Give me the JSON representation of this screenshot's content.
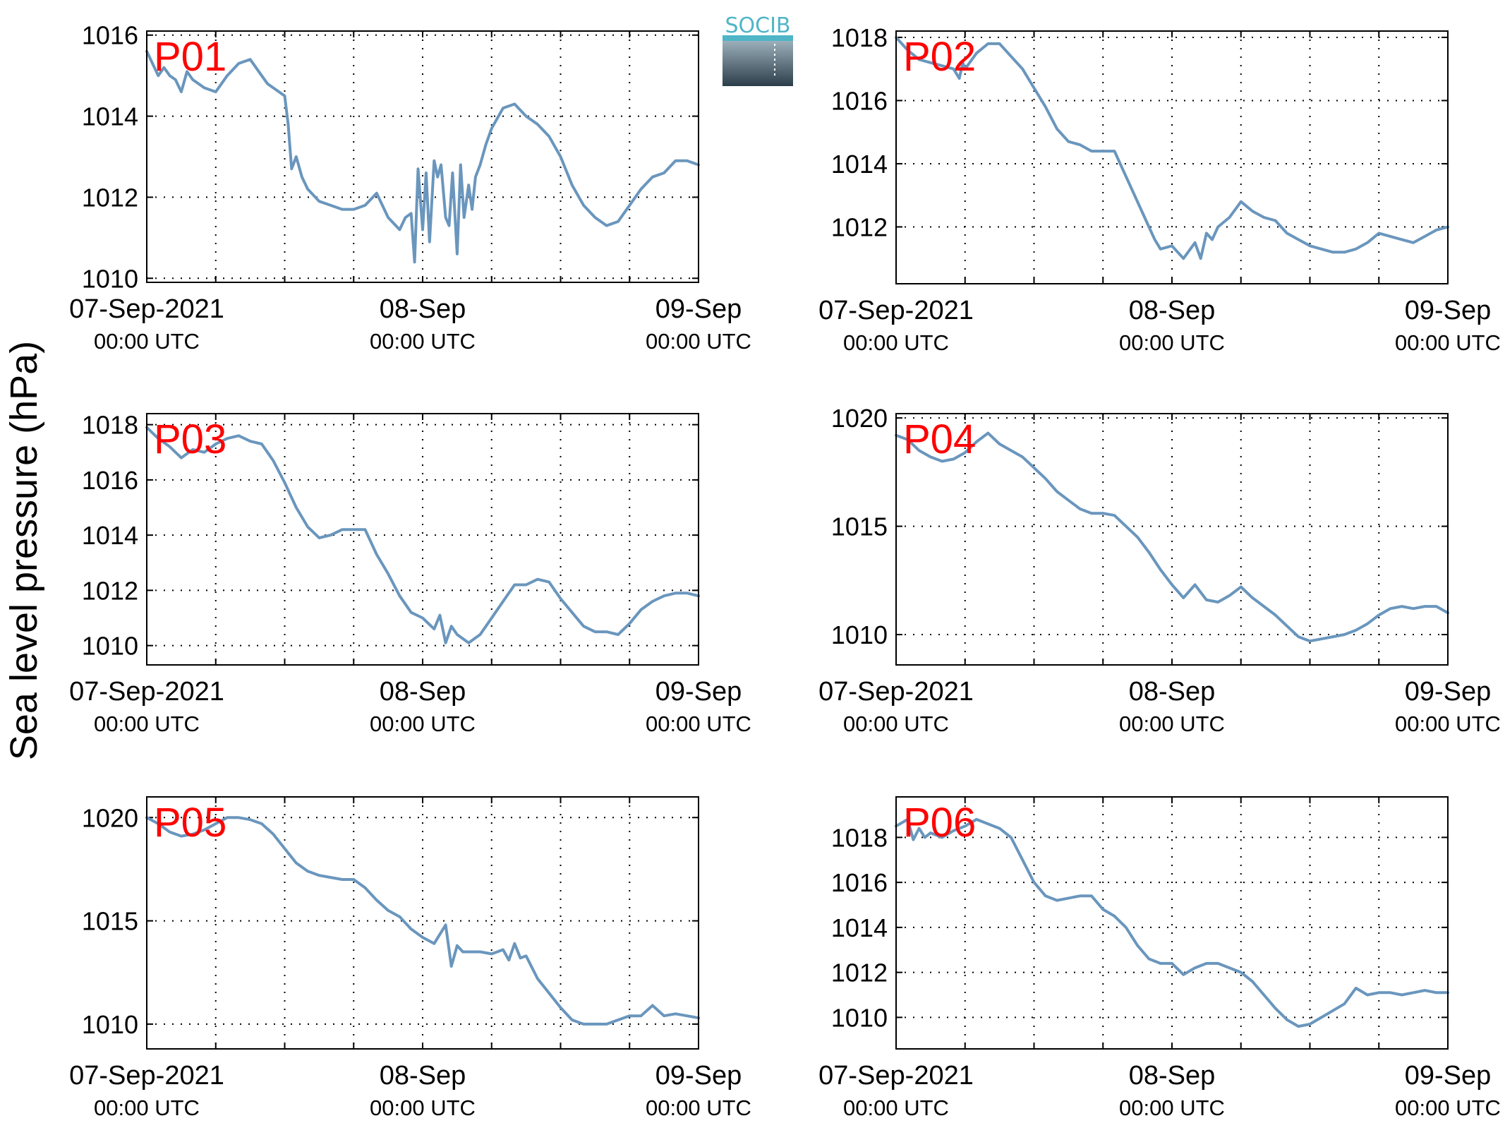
{
  "figure": {
    "ylabel": "Sea level pressure (hPa)",
    "logo_text": "SOCIB",
    "line_color": "#6a96bd",
    "panel_label_color": "#ff0000"
  },
  "chart_data": [
    {
      "type": "line",
      "title": "P01",
      "grid": true,
      "x_ticks": [
        {
          "label": "07-Sep-2021",
          "sub": "00:00 UTC",
          "t": 0
        },
        {
          "label": "08-Sep",
          "sub": "00:00 UTC",
          "t": 24
        },
        {
          "label": "09-Sep",
          "sub": "00:00 UTC",
          "t": 48
        }
      ],
      "x_grid_hours": [
        6,
        12,
        18,
        24,
        30,
        36,
        42
      ],
      "xlim_hours": [
        0,
        48
      ],
      "ylim": [
        1009.9,
        1016.1
      ],
      "yticks": [
        1010,
        1012,
        1014,
        1016
      ],
      "series": [
        {
          "x_hours": [
            0,
            0.5,
            1,
            1.5,
            2,
            2.5,
            3,
            3.5,
            4,
            5,
            6,
            7,
            8,
            9,
            10,
            10.5,
            11,
            11.5,
            12,
            12.3,
            12.6,
            13,
            13.5,
            14,
            15,
            16,
            17,
            18,
            19,
            20,
            21,
            22,
            22.5,
            23,
            23.3,
            23.6,
            24,
            24.3,
            24.6,
            25,
            25.3,
            25.6,
            26,
            26.3,
            26.6,
            27,
            27.3,
            27.6,
            28,
            28.3,
            28.6,
            29,
            29.5,
            30,
            31,
            32,
            33,
            34,
            35,
            36,
            37,
            38,
            39,
            40,
            41,
            42,
            43,
            44,
            45,
            46,
            47,
            48
          ],
          "y": [
            1015.6,
            1015.3,
            1015.0,
            1015.2,
            1015.0,
            1014.9,
            1014.6,
            1015.1,
            1014.9,
            1014.7,
            1014.6,
            1015.0,
            1015.3,
            1015.4,
            1015.0,
            1014.8,
            1014.7,
            1014.6,
            1014.5,
            1013.8,
            1012.7,
            1013.0,
            1012.5,
            1012.2,
            1011.9,
            1011.8,
            1011.7,
            1011.7,
            1011.8,
            1012.1,
            1011.5,
            1011.2,
            1011.5,
            1011.6,
            1010.4,
            1012.7,
            1011.2,
            1012.6,
            1010.9,
            1012.9,
            1012.5,
            1012.8,
            1011.5,
            1011.3,
            1012.6,
            1010.6,
            1012.8,
            1011.5,
            1012.3,
            1011.7,
            1012.5,
            1012.8,
            1013.3,
            1013.7,
            1014.2,
            1014.3,
            1014.0,
            1013.8,
            1013.5,
            1013.0,
            1012.3,
            1011.8,
            1011.5,
            1011.3,
            1011.4,
            1011.8,
            1012.2,
            1012.5,
            1012.6,
            1012.9,
            1012.9,
            1012.8
          ]
        }
      ]
    },
    {
      "type": "line",
      "title": "P02",
      "grid": true,
      "x_ticks": [
        {
          "label": "07-Sep-2021",
          "sub": "00:00 UTC",
          "t": 0
        },
        {
          "label": "08-Sep",
          "sub": "00:00 UTC",
          "t": 24
        },
        {
          "label": "09-Sep",
          "sub": "00:00 UTC",
          "t": 48
        }
      ],
      "x_grid_hours": [
        6,
        12,
        18,
        24,
        30,
        36,
        42
      ],
      "xlim_hours": [
        0,
        48
      ],
      "ylim": [
        1010.2,
        1018.2
      ],
      "yticks": [
        1012,
        1014,
        1016,
        1018
      ],
      "series": [
        {
          "x_hours": [
            0,
            1,
            2,
            3,
            4,
            5,
            5.5,
            5.8,
            6,
            7,
            8,
            9,
            10,
            11,
            12,
            13,
            14,
            15,
            16,
            17,
            18,
            19,
            20,
            21,
            22,
            22.5,
            23,
            24,
            25,
            26,
            26.5,
            27,
            27.5,
            28,
            29,
            30,
            31,
            32,
            33,
            34,
            35,
            36,
            37,
            38,
            39,
            40,
            41,
            42,
            43,
            44,
            45,
            46,
            47,
            48
          ],
          "y": [
            1018.0,
            1017.6,
            1017.3,
            1017.2,
            1017.1,
            1017.0,
            1016.7,
            1017.2,
            1017.0,
            1017.5,
            1017.8,
            1017.8,
            1017.4,
            1017.0,
            1016.4,
            1015.8,
            1015.1,
            1014.7,
            1014.6,
            1014.4,
            1014.4,
            1014.4,
            1013.6,
            1012.8,
            1012.0,
            1011.6,
            1011.3,
            1011.4,
            1011.0,
            1011.5,
            1011.0,
            1011.8,
            1011.6,
            1012.0,
            1012.3,
            1012.8,
            1012.5,
            1012.3,
            1012.2,
            1011.8,
            1011.6,
            1011.4,
            1011.3,
            1011.2,
            1011.2,
            1011.3,
            1011.5,
            1011.8,
            1011.7,
            1011.6,
            1011.5,
            1011.7,
            1011.9,
            1012.0
          ]
        }
      ]
    },
    {
      "type": "line",
      "title": "P03",
      "grid": true,
      "x_ticks": [
        {
          "label": "07-Sep-2021",
          "sub": "00:00 UTC",
          "t": 0
        },
        {
          "label": "08-Sep",
          "sub": "00:00 UTC",
          "t": 24
        },
        {
          "label": "09-Sep",
          "sub": "00:00 UTC",
          "t": 48
        }
      ],
      "x_grid_hours": [
        6,
        12,
        18,
        24,
        30,
        36,
        42
      ],
      "xlim_hours": [
        0,
        48
      ],
      "ylim": [
        1009.3,
        1018.4
      ],
      "yticks": [
        1010,
        1012,
        1014,
        1016,
        1018
      ],
      "series": [
        {
          "x_hours": [
            0,
            1,
            2,
            3,
            4,
            5,
            6,
            7,
            8,
            9,
            10,
            11,
            12,
            13,
            14,
            15,
            16,
            17,
            18,
            19,
            20,
            21,
            22,
            23,
            24,
            25,
            25.5,
            26,
            26.5,
            27,
            28,
            29,
            30,
            31,
            32,
            33,
            34,
            35,
            36,
            37,
            38,
            39,
            40,
            41,
            42,
            43,
            44,
            45,
            46,
            47,
            48
          ],
          "y": [
            1017.9,
            1017.5,
            1017.2,
            1016.8,
            1017.1,
            1017.0,
            1017.3,
            1017.5,
            1017.6,
            1017.4,
            1017.3,
            1016.7,
            1015.9,
            1015.0,
            1014.3,
            1013.9,
            1014.0,
            1014.2,
            1014.2,
            1014.2,
            1013.3,
            1012.6,
            1011.8,
            1011.2,
            1011.0,
            1010.6,
            1011.1,
            1010.1,
            1010.7,
            1010.4,
            1010.1,
            1010.4,
            1011.0,
            1011.6,
            1012.2,
            1012.2,
            1012.4,
            1012.3,
            1011.7,
            1011.2,
            1010.7,
            1010.5,
            1010.5,
            1010.4,
            1010.8,
            1011.3,
            1011.6,
            1011.8,
            1011.9,
            1011.9,
            1011.8
          ]
        }
      ]
    },
    {
      "type": "line",
      "title": "P04",
      "grid": true,
      "x_ticks": [
        {
          "label": "07-Sep-2021",
          "sub": "00:00 UTC",
          "t": 0
        },
        {
          "label": "08-Sep",
          "sub": "00:00 UTC",
          "t": 24
        },
        {
          "label": "09-Sep",
          "sub": "00:00 UTC",
          "t": 48
        }
      ],
      "x_grid_hours": [
        6,
        12,
        18,
        24,
        30,
        36,
        42
      ],
      "xlim_hours": [
        0,
        48
      ],
      "ylim": [
        1008.6,
        1020.2
      ],
      "yticks": [
        1010,
        1015,
        1020
      ],
      "series": [
        {
          "x_hours": [
            0,
            1,
            2,
            3,
            4,
            5,
            6,
            7,
            8,
            9,
            10,
            11,
            12,
            13,
            14,
            15,
            16,
            17,
            18,
            19,
            20,
            21,
            22,
            23,
            24,
            25,
            26,
            27,
            28,
            29,
            30,
            31,
            32,
            33,
            34,
            35,
            36,
            37,
            38,
            39,
            40,
            41,
            42,
            43,
            44,
            45,
            46,
            47,
            48
          ],
          "y": [
            1019.2,
            1019.0,
            1018.5,
            1018.2,
            1018.0,
            1018.1,
            1018.4,
            1018.9,
            1019.3,
            1018.8,
            1018.5,
            1018.2,
            1017.7,
            1017.2,
            1016.6,
            1016.2,
            1015.8,
            1015.6,
            1015.6,
            1015.5,
            1015.0,
            1014.5,
            1013.8,
            1013.0,
            1012.3,
            1011.7,
            1012.3,
            1011.6,
            1011.5,
            1011.8,
            1012.2,
            1011.7,
            1011.3,
            1010.9,
            1010.4,
            1009.9,
            1009.7,
            1009.8,
            1009.9,
            1010.0,
            1010.2,
            1010.5,
            1010.9,
            1011.2,
            1011.3,
            1011.2,
            1011.3,
            1011.3,
            1011.0
          ]
        }
      ]
    },
    {
      "type": "line",
      "title": "P05",
      "grid": true,
      "x_ticks": [
        {
          "label": "07-Sep-2021",
          "sub": "00:00 UTC",
          "t": 0
        },
        {
          "label": "08-Sep",
          "sub": "00:00 UTC",
          "t": 24
        },
        {
          "label": "09-Sep",
          "sub": "00:00 UTC",
          "t": 48
        }
      ],
      "x_grid_hours": [
        6,
        12,
        18,
        24,
        30,
        36,
        42
      ],
      "xlim_hours": [
        0,
        48
      ],
      "ylim": [
        1008.8,
        1021.0
      ],
      "yticks": [
        1010,
        1015,
        1020
      ],
      "series": [
        {
          "x_hours": [
            0,
            1,
            2,
            3,
            4,
            5,
            6,
            7,
            8,
            9,
            10,
            11,
            12,
            13,
            14,
            15,
            16,
            17,
            18,
            19,
            20,
            21,
            22,
            23,
            24,
            25,
            26,
            26.5,
            27,
            27.5,
            28,
            29,
            30,
            31,
            31.5,
            32,
            32.5,
            33,
            34,
            35,
            36,
            37,
            38,
            39,
            40,
            41,
            42,
            43,
            44,
            45,
            46,
            47,
            48
          ],
          "y": [
            1020.0,
            1019.7,
            1019.3,
            1019.1,
            1019.2,
            1019.4,
            1019.7,
            1020.0,
            1020.0,
            1019.9,
            1019.7,
            1019.2,
            1018.5,
            1017.8,
            1017.4,
            1017.2,
            1017.1,
            1017.0,
            1017.0,
            1016.6,
            1016.0,
            1015.5,
            1015.2,
            1014.6,
            1014.2,
            1013.9,
            1014.8,
            1012.8,
            1013.8,
            1013.5,
            1013.5,
            1013.5,
            1013.4,
            1013.6,
            1013.1,
            1013.9,
            1013.2,
            1013.3,
            1012.2,
            1011.5,
            1010.8,
            1010.2,
            1010.0,
            1010.0,
            1010.0,
            1010.2,
            1010.4,
            1010.4,
            1010.9,
            1010.4,
            1010.5,
            1010.4,
            1010.3
          ]
        }
      ]
    },
    {
      "type": "line",
      "title": "P06",
      "grid": true,
      "x_ticks": [
        {
          "label": "07-Sep-2021",
          "sub": "00:00 UTC",
          "t": 0
        },
        {
          "label": "08-Sep",
          "sub": "00:00 UTC",
          "t": 24
        },
        {
          "label": "09-Sep",
          "sub": "00:00 UTC",
          "t": 48
        }
      ],
      "x_grid_hours": [
        6,
        12,
        18,
        24,
        30,
        36,
        42
      ],
      "xlim_hours": [
        0,
        48
      ],
      "ylim": [
        1008.6,
        1019.8
      ],
      "yticks": [
        1010,
        1012,
        1014,
        1016,
        1018
      ],
      "series": [
        {
          "x_hours": [
            0,
            1,
            1.5,
            2,
            2.5,
            3,
            4,
            5,
            6,
            7,
            8,
            9,
            10,
            11,
            12,
            13,
            14,
            15,
            16,
            17,
            18,
            19,
            20,
            21,
            22,
            23,
            24,
            25,
            26,
            27,
            28,
            29,
            30,
            31,
            32,
            33,
            34,
            35,
            36,
            37,
            38,
            39,
            40,
            41,
            42,
            43,
            44,
            45,
            46,
            47,
            48
          ],
          "y": [
            1018.5,
            1018.8,
            1017.9,
            1018.4,
            1018.0,
            1018.2,
            1018.0,
            1018.3,
            1018.5,
            1018.8,
            1018.6,
            1018.4,
            1018.0,
            1017.0,
            1016.0,
            1015.4,
            1015.2,
            1015.3,
            1015.4,
            1015.4,
            1014.8,
            1014.5,
            1014.0,
            1013.2,
            1012.6,
            1012.4,
            1012.4,
            1011.9,
            1012.2,
            1012.4,
            1012.4,
            1012.2,
            1012.0,
            1011.6,
            1011.0,
            1010.4,
            1009.9,
            1009.6,
            1009.7,
            1010.0,
            1010.3,
            1010.6,
            1011.3,
            1011.0,
            1011.1,
            1011.1,
            1011.0,
            1011.1,
            1011.2,
            1011.1,
            1011.1
          ]
        }
      ]
    }
  ]
}
